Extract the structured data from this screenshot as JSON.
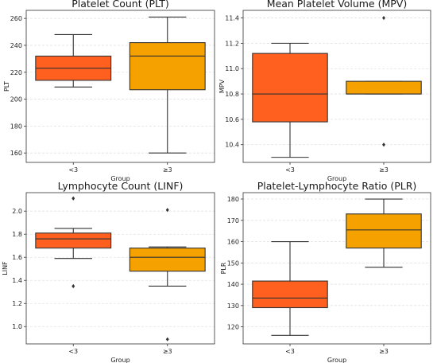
{
  "chart_data": [
    {
      "type": "box",
      "title": "Platelet Count (PLT)",
      "xlabel": "Group",
      "ylabel": "PLT",
      "ylim": [
        153,
        266
      ],
      "yticks": [
        160,
        180,
        200,
        220,
        240,
        260
      ],
      "grid": true,
      "categories": [
        "<3",
        "≥3"
      ],
      "colors": [
        "#ff5f1f",
        "#f5a100"
      ],
      "boxes": [
        {
          "category": "<3",
          "whisker_low": 209,
          "q1": 214,
          "median": 223,
          "q3": 232,
          "whisker_high": 248,
          "outliers": []
        },
        {
          "category": "≥3",
          "whisker_low": 160,
          "q1": 207,
          "median": 232,
          "q3": 242,
          "whisker_high": 261,
          "outliers": []
        }
      ]
    },
    {
      "type": "box",
      "title": "Mean Platelet Volume (MPV)",
      "xlabel": "Group",
      "ylabel": "MPV",
      "ylim": [
        10.26,
        11.46
      ],
      "yticks": [
        10.4,
        10.6,
        10.8,
        11.0,
        11.2,
        11.4
      ],
      "grid": true,
      "categories": [
        "<3",
        "≥3"
      ],
      "colors": [
        "#ff5f1f",
        "#f5a100"
      ],
      "boxes": [
        {
          "category": "<3",
          "whisker_low": 10.3,
          "q1": 10.58,
          "median": 10.8,
          "q3": 11.12,
          "whisker_high": 11.2,
          "outliers": []
        },
        {
          "category": "≥3",
          "whisker_low": 10.8,
          "q1": 10.8,
          "median": 10.8,
          "q3": 10.9,
          "whisker_high": 10.9,
          "outliers": [
            10.4,
            11.4
          ]
        }
      ]
    },
    {
      "type": "box",
      "title": "Lymphocyte Count (LINF)",
      "xlabel": "Group",
      "ylabel": "LINF",
      "ylim": [
        0.85,
        2.16
      ],
      "yticks": [
        1.0,
        1.2,
        1.4,
        1.6,
        1.8,
        2.0
      ],
      "grid": true,
      "categories": [
        "<3",
        "≥3"
      ],
      "colors": [
        "#ff5f1f",
        "#f5a100"
      ],
      "boxes": [
        {
          "category": "<3",
          "whisker_low": 1.59,
          "q1": 1.68,
          "median": 1.76,
          "q3": 1.81,
          "whisker_high": 1.85,
          "outliers": [
            1.35,
            2.11
          ]
        },
        {
          "category": "≥3",
          "whisker_low": 1.35,
          "q1": 1.48,
          "median": 1.6,
          "q3": 1.68,
          "whisker_high": 1.69,
          "outliers": [
            0.89,
            2.01
          ]
        }
      ]
    },
    {
      "type": "box",
      "title": "Platelet-Lymphocyte Ratio (PLR)",
      "xlabel": "Group",
      "ylabel": "PLR",
      "ylim": [
        112,
        183
      ],
      "yticks": [
        120,
        130,
        140,
        150,
        160,
        170,
        180
      ],
      "grid": true,
      "categories": [
        "<3",
        "≥3"
      ],
      "colors": [
        "#ff5f1f",
        "#f5a100"
      ],
      "boxes": [
        {
          "category": "<3",
          "whisker_low": 116,
          "q1": 129,
          "median": 133.5,
          "q3": 141.5,
          "whisker_high": 160,
          "outliers": []
        },
        {
          "category": "≥3",
          "whisker_low": 148,
          "q1": 157,
          "median": 165.5,
          "q3": 173,
          "whisker_high": 180,
          "outliers": []
        }
      ]
    }
  ]
}
